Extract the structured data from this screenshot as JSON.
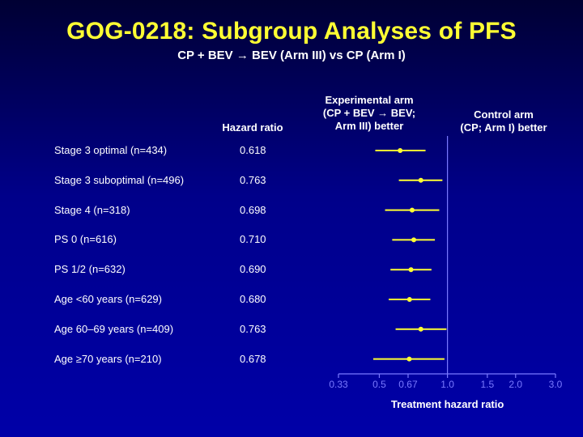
{
  "title": "GOG-0218: Subgroup Analyses of PFS",
  "subtitle": "CP + BEV → BEV (Arm III) vs CP (Arm I)",
  "headers": {
    "hazard_ratio": "Hazard ratio",
    "experimental_line1": "Experimental arm",
    "experimental_line2": "(CP + BEV → BEV;",
    "experimental_line3": "Arm III) better",
    "control_line1": "Control arm",
    "control_line2": "(CP; Arm I) better"
  },
  "colors": {
    "background": "#0000a8",
    "title": "#ffff33",
    "marker": "#ffff33",
    "axis": "#7a7aff",
    "text": "#ffffff"
  },
  "chart_data": {
    "type": "forest",
    "xlabel": "Treatment hazard ratio",
    "x_scale": "log",
    "xlim": [
      0.33,
      3.0
    ],
    "reference_line": 1.0,
    "ticks": [
      {
        "value": 0.33,
        "label": "0.33"
      },
      {
        "value": 0.5,
        "label": "0.5"
      },
      {
        "value": 0.67,
        "label": "0.67"
      },
      {
        "value": 1.0,
        "label": "1.0"
      },
      {
        "value": 1.5,
        "label": "1.5"
      },
      {
        "value": 2.0,
        "label": "2.0"
      },
      {
        "value": 3.0,
        "label": "3.0"
      }
    ],
    "rows": [
      {
        "label": "Stage 3 optimal (n=434)",
        "hr": 0.618,
        "hr_label": "0.618",
        "ci": [
          0.48,
          0.8
        ]
      },
      {
        "label": "Stage 3 suboptimal (n=496)",
        "hr": 0.763,
        "hr_label": "0.763",
        "ci": [
          0.61,
          0.95
        ]
      },
      {
        "label": "Stage 4 (n=318)",
        "hr": 0.698,
        "hr_label": "0.698",
        "ci": [
          0.53,
          0.92
        ]
      },
      {
        "label": "PS 0  (n=616)",
        "hr": 0.71,
        "hr_label": "0.710",
        "ci": [
          0.57,
          0.88
        ]
      },
      {
        "label": "PS 1/2 (n=632)",
        "hr": 0.69,
        "hr_label": "0.690",
        "ci": [
          0.56,
          0.85
        ]
      },
      {
        "label": "Age <60 years (n=629)",
        "hr": 0.68,
        "hr_label": "0.680",
        "ci": [
          0.55,
          0.84
        ]
      },
      {
        "label": "Age 60–69 years (n=409)",
        "hr": 0.763,
        "hr_label": "0.763",
        "ci": [
          0.59,
          0.99
        ]
      },
      {
        "label": "Age ≥70 years (n=210)",
        "hr": 0.678,
        "hr_label": "0.678",
        "ci": [
          0.47,
          0.97
        ]
      }
    ]
  }
}
